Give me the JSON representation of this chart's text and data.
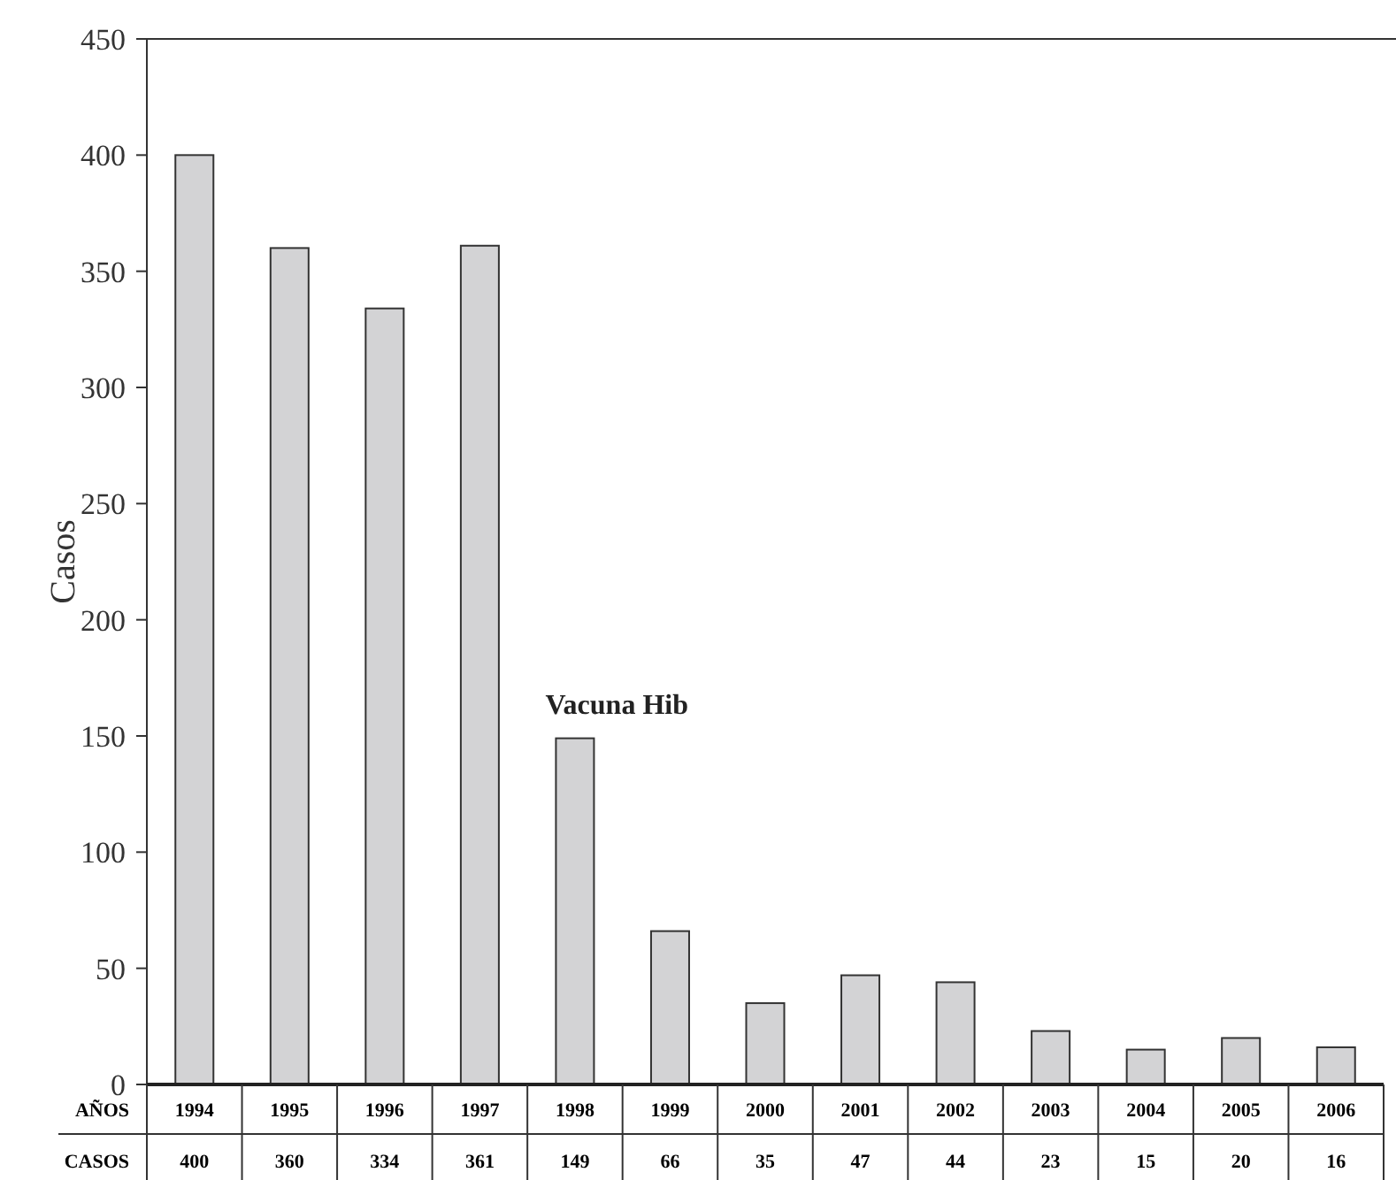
{
  "chart_data": {
    "type": "bar",
    "xlabel": "AÑOS",
    "ylabel": "Casos",
    "categories": [
      "1994",
      "1995",
      "1996",
      "1997",
      "1998",
      "1999",
      "2000",
      "2001",
      "2002",
      "2003",
      "2004",
      "2005",
      "2006"
    ],
    "values": [
      400,
      360,
      334,
      361,
      149,
      66,
      35,
      47,
      44,
      23,
      15,
      20,
      16
    ],
    "color": "#d3d3d5",
    "ylim": [
      0,
      450
    ],
    "yticks": [
      0,
      50,
      100,
      150,
      200,
      250,
      300,
      350,
      400,
      450
    ],
    "data_labels": true,
    "annotations": [
      {
        "text": "Vacuna Hib",
        "x": "1998",
        "y": 149
      },
      "CASOS"
    ]
  }
}
